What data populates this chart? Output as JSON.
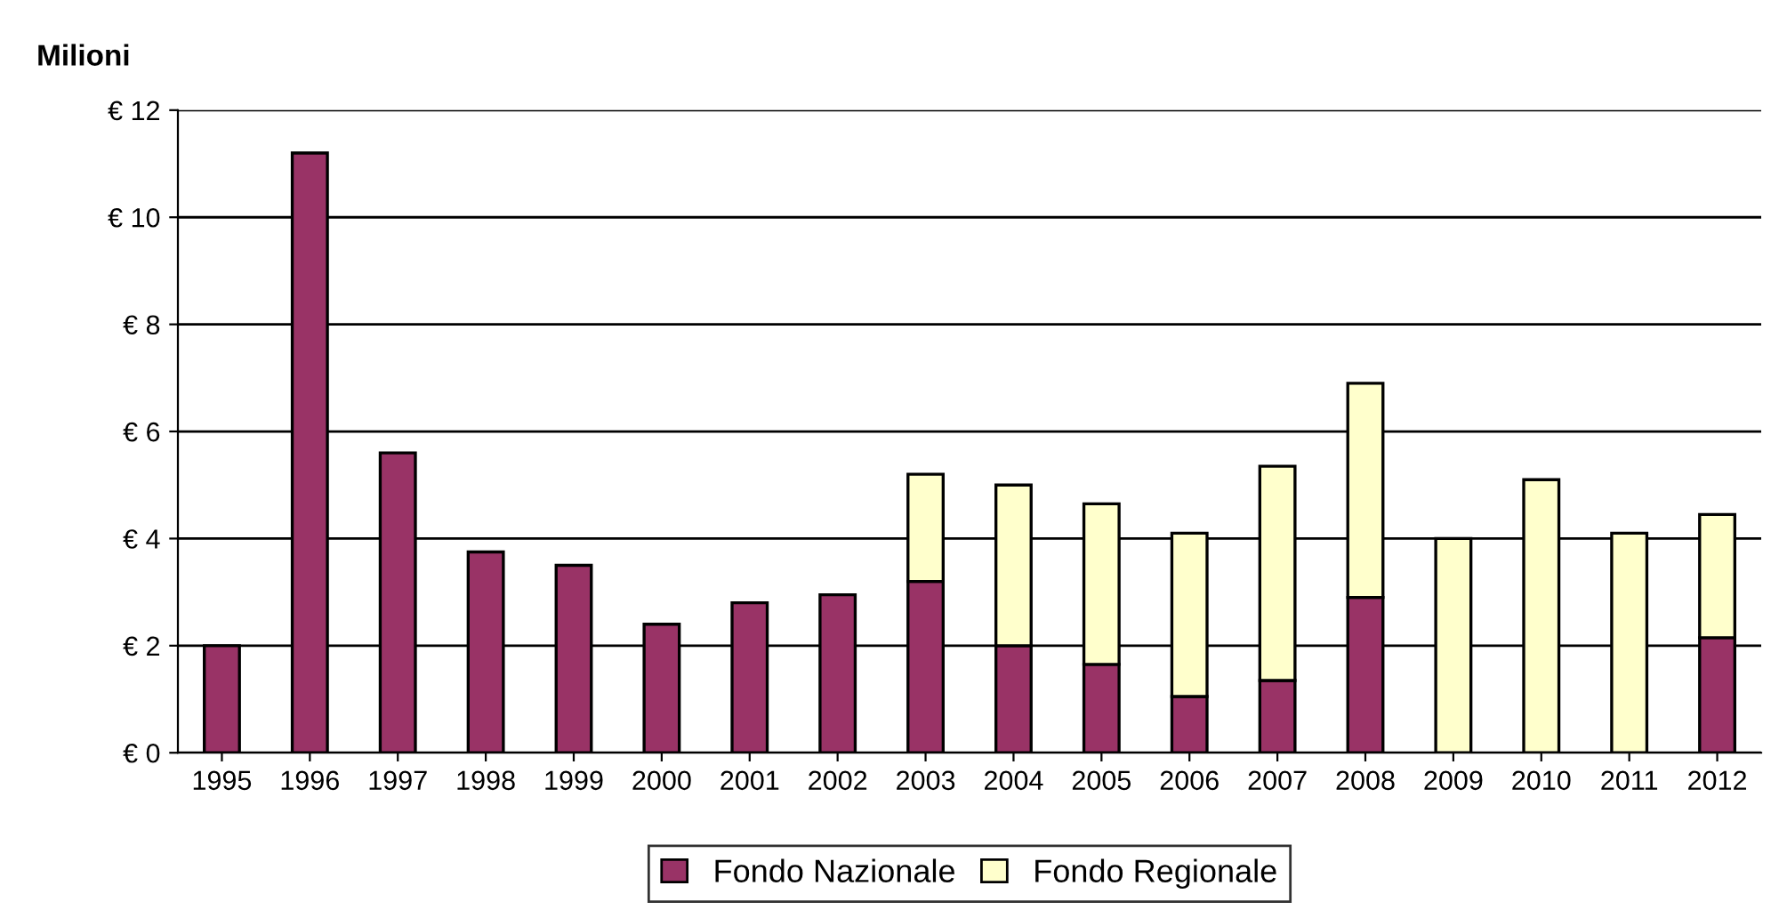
{
  "chart_data": {
    "type": "bar",
    "stacked": true,
    "ylabel": "Milioni",
    "categories": [
      "1995",
      "1996",
      "1997",
      "1998",
      "1999",
      "2000",
      "2001",
      "2002",
      "2003",
      "2004",
      "2005",
      "2006",
      "2007",
      "2008",
      "2009",
      "2010",
      "2011",
      "2012"
    ],
    "series": [
      {
        "name": "Fondo Nazionale",
        "color": "#993366",
        "values": [
          2.0,
          11.2,
          5.6,
          3.75,
          3.5,
          2.4,
          2.8,
          2.95,
          3.2,
          2.0,
          1.65,
          1.05,
          1.35,
          2.9,
          0,
          0,
          0,
          2.15
        ]
      },
      {
        "name": "Fondo Regionale",
        "color": "#ffffcc",
        "values": [
          null,
          null,
          null,
          null,
          null,
          null,
          null,
          null,
          2.0,
          3.0,
          3.0,
          3.05,
          4.0,
          4.0,
          4.0,
          5.1,
          4.1,
          2.3
        ]
      }
    ],
    "ylim": [
      0,
      12
    ],
    "yticks": [
      {
        "value": 0,
        "label": "€ 0"
      },
      {
        "value": 2,
        "label": "€ 2"
      },
      {
        "value": 4,
        "label": "€ 4"
      },
      {
        "value": 6,
        "label": "€ 6"
      },
      {
        "value": 8,
        "label": "€ 8"
      },
      {
        "value": 10,
        "label": "€ 10"
      },
      {
        "value": 12,
        "label": "€ 12"
      }
    ],
    "grid": "y",
    "legend": "bottom"
  }
}
